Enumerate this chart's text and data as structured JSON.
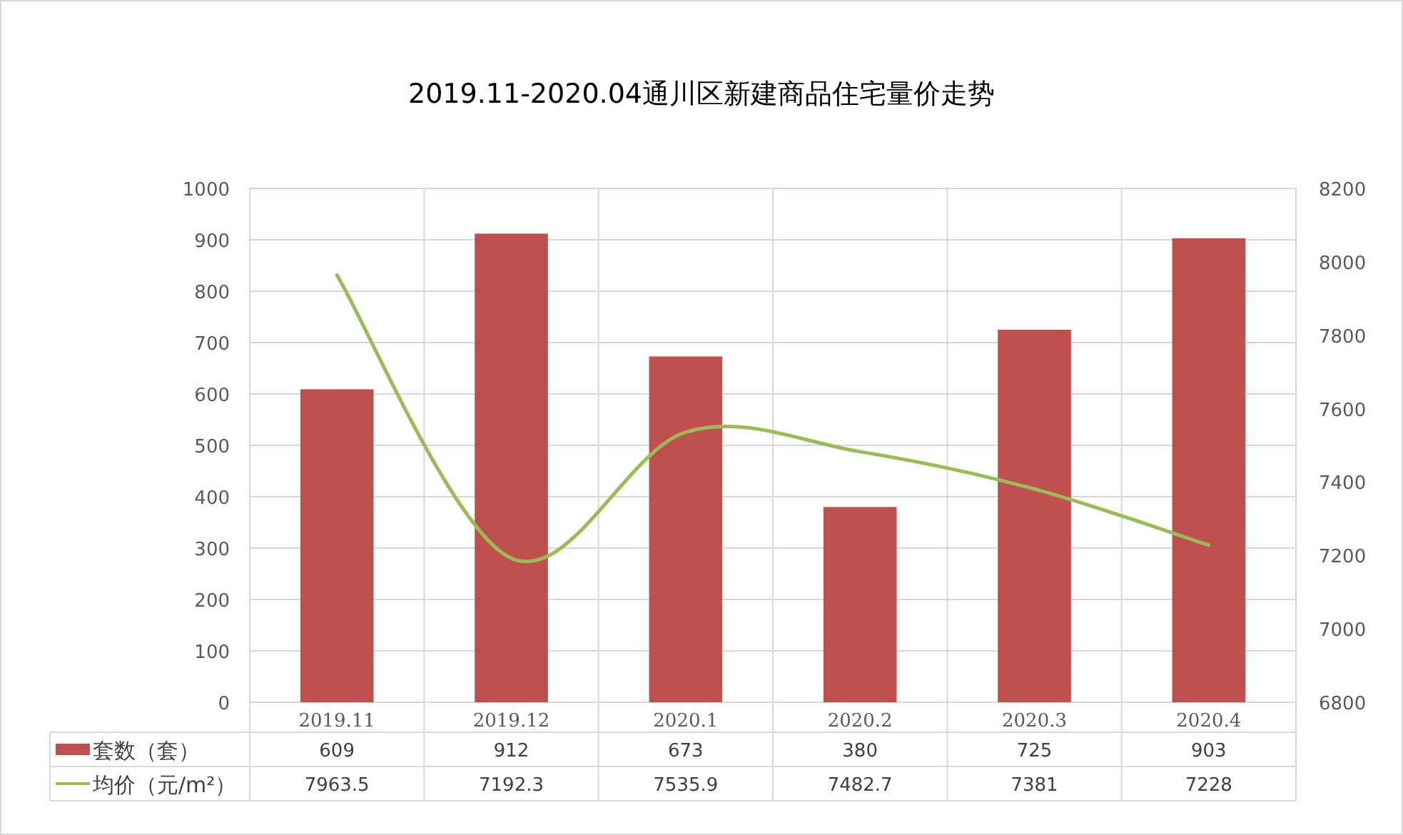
{
  "chart_data": {
    "type": "bar",
    "title": "2019.11-2020.04通川区新建商品住宅量价走势",
    "categories": [
      "2019.11",
      "2019.12",
      "2020.1",
      "2020.2",
      "2020.3",
      "2020.4"
    ],
    "series": [
      {
        "name": "套数（套）",
        "color": "#c0504d",
        "values": [
          609,
          912,
          673,
          380,
          725,
          903
        ]
      },
      {
        "name": "均价（元/m²）",
        "type": "line",
        "axis": "y2",
        "color": "#9bbb59",
        "values": [
          7963.5,
          7192.3,
          7535.9,
          7482.7,
          7381,
          7228
        ]
      }
    ],
    "ylim": [
      0,
      1000
    ],
    "yticks": [
      0,
      100,
      200,
      300,
      400,
      500,
      600,
      700,
      800,
      900,
      1000
    ],
    "y2lim": [
      6800,
      8200
    ],
    "y2ticks": [
      6800,
      7000,
      7200,
      7400,
      7600,
      7800,
      8000,
      8200
    ],
    "grid": true,
    "legend": "bottom",
    "data_labels": true,
    "marker": "none"
  }
}
